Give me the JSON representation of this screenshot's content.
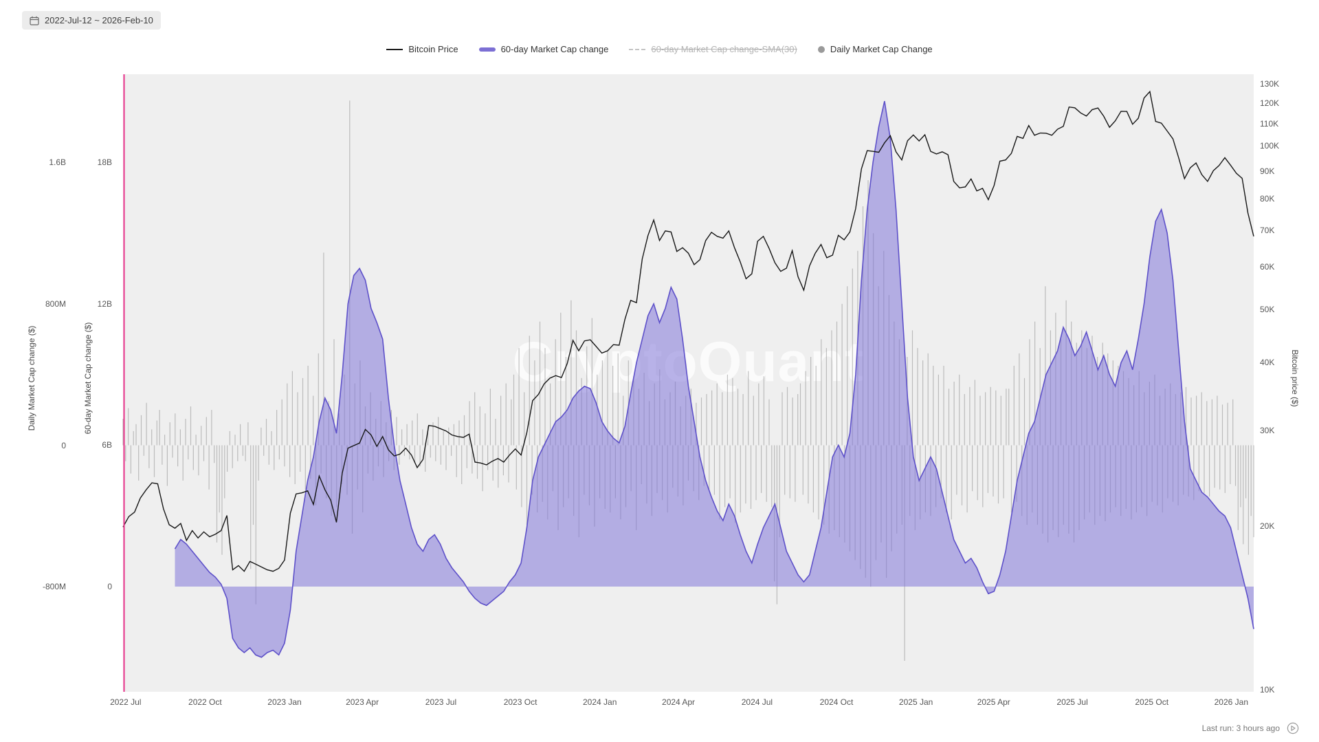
{
  "header": {
    "date_range": "2022-Jul-12 ~ 2026-Feb-10"
  },
  "watermark": "CryptoQuant",
  "footer": {
    "last_run": "Last run: 3 hours ago"
  },
  "legend": [
    {
      "label": "Bitcoin Price",
      "type": "line",
      "color": "#1a1a1a",
      "disabled": false
    },
    {
      "label": "60-day Market Cap change",
      "type": "area",
      "color": "#7c6fd4",
      "disabled": false
    },
    {
      "label": "60-day Market Cap change-SMA(30)",
      "type": "dashed",
      "color": "#c4c4c4",
      "disabled": true
    },
    {
      "label": "Daily Market Cap Change",
      "type": "dot",
      "color": "#9a9a9a",
      "disabled": false
    }
  ],
  "colors": {
    "plot_bg": "#efefef",
    "range_marker": "#e8308a",
    "daily_bar": "#8f8f8f",
    "area_fill": "#8276d8",
    "area_line": "#5d50c9",
    "price_line": "#161616"
  },
  "axes": {
    "x": {
      "ticks": [
        {
          "label": "2022 Jul",
          "day": 3
        },
        {
          "label": "2022 Oct",
          "day": 95
        },
        {
          "label": "2023 Jan",
          "day": 187
        },
        {
          "label": "2023 Apr",
          "day": 277
        },
        {
          "label": "2023 Jul",
          "day": 368
        },
        {
          "label": "2023 Oct",
          "day": 460
        },
        {
          "label": "2024 Jan",
          "day": 552
        },
        {
          "label": "2024 Apr",
          "day": 643
        },
        {
          "label": "2024 Jul",
          "day": 734
        },
        {
          "label": "2024 Oct",
          "day": 826
        },
        {
          "label": "2025 Jan",
          "day": 918
        },
        {
          "label": "2025 Apr",
          "day": 1008
        },
        {
          "label": "2025 Jul",
          "day": 1099
        },
        {
          "label": "2025 Oct",
          "day": 1191
        },
        {
          "label": "2026 Jan",
          "day": 1283
        }
      ]
    },
    "price": {
      "label": "Bitcoin price ($)",
      "scale": "log",
      "ylim": [
        10,
        130
      ],
      "ticks": [
        {
          "label": "130K",
          "value": 130
        },
        {
          "label": "120K",
          "value": 120
        },
        {
          "label": "110K",
          "value": 110
        },
        {
          "label": "100K",
          "value": 100
        },
        {
          "label": "90K",
          "value": 90
        },
        {
          "label": "80K",
          "value": 80
        },
        {
          "label": "70K",
          "value": 70
        },
        {
          "label": "60K",
          "value": 60
        },
        {
          "label": "50K",
          "value": 50
        },
        {
          "label": "40K",
          "value": 40
        },
        {
          "label": "30K",
          "value": 30
        },
        {
          "label": "20K",
          "value": 20
        },
        {
          "label": "10K",
          "value": 10
        }
      ]
    },
    "mc60": {
      "label": "60-day Market Cap change ($)",
      "scale": "linear",
      "ylim": [
        -4.5,
        21.7
      ],
      "ticks": [
        {
          "label": "18B",
          "value": 18
        },
        {
          "label": "12B",
          "value": 12
        },
        {
          "label": "6B",
          "value": 6
        },
        {
          "label": "0",
          "value": 0
        }
      ]
    },
    "daily": {
      "label": "Daily Market Cap change ($)",
      "scale": "linear",
      "ylim": [
        -2150,
        2550
      ],
      "ticks": [
        {
          "label": "1.6B",
          "value": 1600
        },
        {
          "label": "800M",
          "value": 800
        },
        {
          "label": "0",
          "value": 0
        },
        {
          "label": "-800M",
          "value": -800
        }
      ]
    }
  },
  "chart_data": {
    "type": "mixed",
    "x_range": [
      "2022-07-12",
      "2026-02-10"
    ],
    "total_days": 1309,
    "grid": false,
    "legend_position": "top",
    "series": [
      {
        "name": "Bitcoin Price",
        "type": "line",
        "axis": "price",
        "unit": "thousand USD",
        "color": "#161616",
        "values": [
          19.9,
          20.8,
          21.2,
          22.5,
          23.3,
          24.0,
          23.9,
          21.5,
          20.1,
          19.8,
          20.2,
          18.8,
          19.6,
          19.0,
          19.5,
          19.1,
          19.3,
          19.6,
          20.9,
          16.6,
          16.9,
          16.5,
          17.2,
          17.0,
          16.8,
          16.6,
          16.5,
          16.7,
          17.3,
          21.1,
          22.9,
          23.0,
          23.2,
          21.9,
          24.7,
          23.3,
          22.3,
          20.3,
          25.0,
          27.8,
          28.1,
          28.4,
          30.1,
          29.4,
          28.0,
          29.2,
          27.6,
          26.9,
          27.1,
          27.8,
          27.0,
          25.6,
          26.5,
          30.6,
          30.5,
          30.2,
          29.9,
          29.4,
          29.2,
          29.1,
          29.5,
          26.2,
          26.1,
          25.9,
          26.3,
          26.6,
          26.2,
          27.0,
          27.7,
          27.0,
          29.7,
          34.0,
          34.9,
          36.5,
          37.4,
          37.8,
          37.5,
          39.8,
          43.9,
          42.0,
          43.8,
          44.0,
          42.8,
          41.6,
          42.0,
          43.1,
          43.0,
          48.0,
          52.0,
          51.5,
          62.0,
          68.5,
          73.1,
          67.0,
          69.8,
          69.5,
          64.0,
          65.0,
          63.5,
          60.5,
          61.8,
          67.0,
          69.4,
          68.2,
          67.7,
          69.8,
          65.0,
          61.2,
          57.0,
          58.2,
          66.8,
          68.2,
          64.8,
          61.0,
          58.8,
          59.6,
          64.2,
          57.5,
          54.3,
          60.2,
          63.5,
          65.9,
          62.3,
          63.0,
          68.5,
          67.2,
          69.5,
          76.7,
          90.8,
          98.1,
          97.8,
          97.4,
          101.4,
          104.5,
          97.6,
          94.3,
          102.3,
          104.8,
          102.2,
          104.9,
          97.8,
          96.7,
          97.6,
          96.4,
          86.1,
          83.8,
          84.1,
          87.0,
          82.7,
          83.6,
          79.7,
          84.6,
          93.8,
          94.3,
          97.0,
          104.2,
          103.3,
          109.1,
          104.7,
          105.7,
          105.6,
          104.7,
          107.4,
          108.7,
          118.0,
          117.6,
          115.1,
          113.6,
          116.7,
          117.5,
          113.5,
          108.3,
          111.3,
          115.9,
          115.8,
          109.7,
          112.5,
          122.6,
          126.0,
          111.0,
          110.2,
          106.6,
          103.1,
          95.1,
          87.1,
          91.2,
          93.1,
          88.6,
          86.1,
          90.1,
          92.1,
          95.2,
          92.2,
          89.1,
          87.2,
          75.3,
          68.2
        ]
      },
      {
        "name": "60-day Market Cap change",
        "type": "area",
        "axis": "mc60",
        "unit": "billion USD",
        "color": "#5d50c9",
        "fill": "#8276d8",
        "values": [
          null,
          null,
          null,
          null,
          null,
          null,
          null,
          null,
          null,
          1.6,
          2.0,
          1.8,
          1.5,
          1.2,
          0.9,
          0.6,
          0.4,
          0.1,
          -0.5,
          -2.2,
          -2.6,
          -2.8,
          -2.6,
          -2.9,
          -3.0,
          -2.8,
          -2.7,
          -2.9,
          -2.4,
          -1.0,
          1.5,
          3.0,
          4.5,
          5.5,
          7.0,
          8.0,
          7.5,
          6.5,
          9.0,
          12.0,
          13.2,
          13.5,
          13.0,
          11.8,
          11.2,
          10.5,
          8.0,
          6.0,
          4.5,
          3.5,
          2.5,
          1.8,
          1.5,
          2.0,
          2.2,
          1.8,
          1.2,
          0.8,
          0.5,
          0.2,
          -0.2,
          -0.5,
          -0.7,
          -0.8,
          -0.6,
          -0.4,
          -0.2,
          0.2,
          0.5,
          1.0,
          2.5,
          4.5,
          5.5,
          6.0,
          6.5,
          7.0,
          7.2,
          7.5,
          8.0,
          8.3,
          8.5,
          8.4,
          7.8,
          7.0,
          6.6,
          6.3,
          6.1,
          6.8,
          8.2,
          9.5,
          10.5,
          11.5,
          12.0,
          11.2,
          11.8,
          12.7,
          12.2,
          10.5,
          8.5,
          7.0,
          5.5,
          4.5,
          3.8,
          3.2,
          2.8,
          3.5,
          3.0,
          2.2,
          1.5,
          1.0,
          1.8,
          2.5,
          3.0,
          3.5,
          2.5,
          1.5,
          1.0,
          0.5,
          0.2,
          0.5,
          1.5,
          2.5,
          4.0,
          5.5,
          6.0,
          5.5,
          6.5,
          9.0,
          13.0,
          16.0,
          18.0,
          19.5,
          20.6,
          19.0,
          16.0,
          12.0,
          8.0,
          5.5,
          4.5,
          5.0,
          5.5,
          5.0,
          4.0,
          3.0,
          2.0,
          1.5,
          1.0,
          1.2,
          0.8,
          0.2,
          -0.3,
          -0.2,
          0.5,
          1.5,
          3.0,
          4.5,
          5.5,
          6.5,
          7.0,
          8.0,
          9.0,
          9.5,
          10.0,
          11.0,
          10.5,
          9.8,
          10.2,
          10.8,
          10.0,
          9.2,
          9.8,
          9.0,
          8.5,
          9.5,
          10.0,
          9.2,
          10.5,
          12.0,
          14.0,
          15.5,
          16.0,
          15.0,
          13.0,
          10.0,
          7.0,
          5.0,
          4.5,
          4.0,
          3.8,
          3.5,
          3.2,
          3.0,
          2.5,
          1.5,
          0.5,
          -0.5,
          -1.8
        ]
      },
      {
        "name": "Daily Market Cap Change",
        "type": "bar",
        "axis": "daily",
        "unit": "million USD",
        "color": "#8f8f8f",
        "values": [
          150,
          -90,
          210,
          -160,
          80,
          120,
          -200,
          170,
          -60,
          240,
          -130,
          90,
          -180,
          140,
          200,
          -110,
          60,
          -230,
          130,
          -70,
          180,
          -120,
          90,
          -200,
          150,
          -80,
          220,
          -140,
          60,
          -170,
          110,
          -90,
          160,
          -250,
          200,
          -100,
          -550,
          -380,
          -620,
          -300,
          -150,
          80,
          -130,
          60,
          -90,
          120,
          -60,
          -90,
          130,
          -700,
          -450,
          -900,
          -200,
          100,
          -60,
          150,
          -110,
          80,
          -140,
          200,
          -80,
          260,
          -120,
          350,
          -180,
          420,
          -220,
          300,
          -150,
          380,
          -250,
          450,
          -190,
          280,
          -340,
          520,
          -160,
          1090,
          -300,
          250,
          -400,
          600,
          -350,
          180,
          -220,
          400,
          -280,
          1950,
          -500,
          350,
          -250,
          480,
          -380,
          220,
          -160,
          300,
          -200,
          150,
          -120,
          250,
          -180,
          130,
          -90,
          200,
          -140,
          160,
          -110,
          90,
          -60,
          120,
          -80,
          140,
          -100,
          180,
          -120,
          90,
          -150,
          110,
          -70,
          130,
          -90,
          160,
          -110,
          80,
          -140,
          100,
          -60,
          120,
          -180,
          140,
          -220,
          170,
          -130,
          250,
          -160,
          300,
          -190,
          220,
          -260,
          180,
          -140,
          320,
          -200,
          150,
          -240,
          280,
          -170,
          350,
          -210,
          260,
          400,
          -250,
          550,
          -350,
          300,
          -450,
          620,
          -280,
          480,
          -380,
          700,
          -320,
          550,
          -420,
          350,
          -260,
          600,
          -480,
          750,
          -350,
          500,
          -300,
          820,
          -400,
          650,
          -520,
          380,
          -280,
          560,
          -340,
          720,
          -460,
          400,
          -300,
          480,
          -360,
          540,
          -380,
          450,
          -300,
          520,
          -420,
          280,
          -350,
          480,
          -260,
          390,
          -480,
          320,
          -220,
          410,
          -330,
          250,
          -400,
          350,
          -270,
          430,
          -310,
          260,
          -380,
          300,
          -240,
          360,
          -290,
          220,
          -340,
          280,
          -200,
          320,
          -260,
          240,
          -310,
          270,
          -230,
          290,
          -250,
          310,
          -280,
          350,
          -420,
          300,
          -350,
          400,
          -300,
          380,
          -440,
          320,
          -380,
          290,
          -330,
          420,
          -360,
          280,
          -310,
          350,
          -270,
          390,
          -320,
          260,
          -350,
          -770,
          -900,
          -520,
          300,
          -280,
          330,
          -300,
          270,
          -320,
          290,
          350,
          -280,
          420,
          -330,
          500,
          -380,
          450,
          -420,
          600,
          -450,
          550,
          -500,
          650,
          -480,
          700,
          -520,
          800,
          -550,
          900,
          -600,
          1000,
          -650,
          1100,
          -700,
          1352,
          -750,
          1500,
          -800,
          1200,
          -650,
          900,
          -550,
          1100,
          -750,
          850,
          -600,
          700,
          -500,
          600,
          -450,
          -1220,
          500,
          -400,
          650,
          -480,
          550,
          -420,
          480,
          -380,
          520,
          -400,
          450,
          -350,
          400,
          -300,
          450,
          -380,
          320,
          -420,
          360,
          -280,
          400,
          -340,
          290,
          -380,
          330,
          -260,
          370,
          -310,
          280,
          -350,
          300,
          -270,
          330,
          -290,
          310,
          -330,
          280,
          -300,
          320,
          320,
          -380,
          450,
          -320,
          520,
          -400,
          380,
          -450,
          600,
          -380,
          700,
          -450,
          550,
          -500,
          900,
          -550,
          650,
          -480,
          750,
          -520,
          600,
          -450,
          820,
          -500,
          700,
          -550,
          580,
          -480,
          650,
          -420,
          550,
          -380,
          620,
          -450,
          500,
          -400,
          580,
          -430,
          520,
          -380,
          480,
          -350,
          450,
          -400,
          420,
          -360,
          380,
          -420,
          340,
          -380,
          420,
          -350,
          300,
          -400,
          360,
          -320,
          400,
          -340,
          280,
          -380,
          320,
          -300,
          350,
          -320,
          290,
          -340,
          300,
          -280,
          330,
          -290,
          270,
          -310,
          280,
          -260,
          300,
          -270,
          250,
          -290,
          260,
          -240,
          280,
          -250,
          230,
          -270,
          240,
          -220,
          260,
          -230,
          -480,
          -350,
          -560,
          -300,
          -620,
          -400,
          -520
        ]
      }
    ]
  }
}
